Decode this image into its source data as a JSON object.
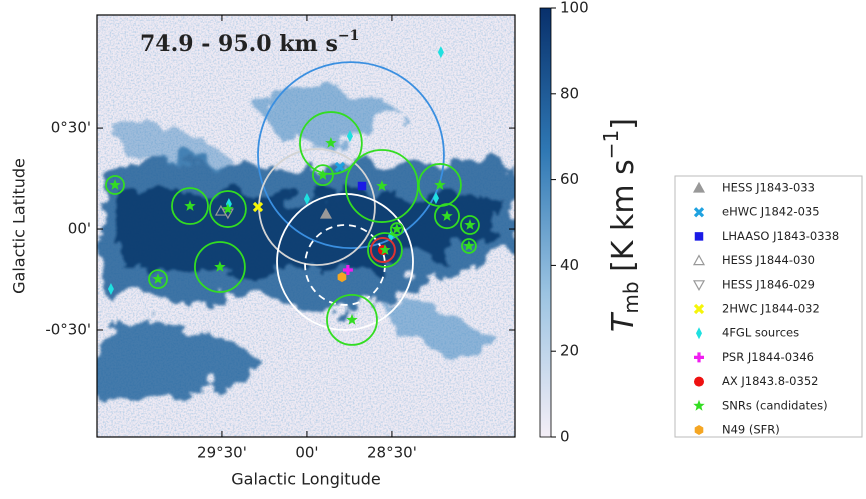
{
  "chart_data": {
    "type": "skymap",
    "title": {
      "text": "74.9 - 95.0 km s",
      "superscript": "−1"
    },
    "xlabel": "Galactic Longitude",
    "ylabel": "Galactic Latitude",
    "xlim": [
      30.235,
      27.776
    ],
    "ylim": [
      -1.03,
      1.06
    ],
    "xticks": [
      {
        "value": 29.5,
        "label": "29°30'"
      },
      {
        "value": 29.0,
        "label": "00'"
      },
      {
        "value": 28.5,
        "label": "28°30'"
      }
    ],
    "yticks": [
      {
        "value": 0.5,
        "label": "0°30'"
      },
      {
        "value": 0,
        "label": "00'"
      },
      {
        "value": -0.5,
        "label": "-0°30'"
      }
    ],
    "colorbar": {
      "symbol": "T",
      "subscript": "mb",
      "unit": " [K km s",
      "exponent": "−1",
      "close": "]",
      "lim": [
        0,
        100
      ],
      "ticks": [
        0,
        20,
        40,
        60,
        80,
        100
      ],
      "colors": [
        "#f4eef6",
        "#9cc4e2",
        "#2f78b4",
        "#08306b"
      ]
    },
    "regions": [
      {
        "x": 28.741,
        "y": 0.366,
        "r": 0.547,
        "color": "#3a8fe0",
        "dashed": false
      },
      {
        "x": 28.941,
        "y": 0.109,
        "r": 0.341,
        "color": "#d4d4d4",
        "dashed": false
      },
      {
        "x": 28.776,
        "y": -0.163,
        "r": 0.4,
        "color": "#ffffff",
        "dashed": false
      },
      {
        "x": 28.776,
        "y": -0.178,
        "r": 0.235,
        "color": "#ffffff",
        "dashed": true
      }
    ],
    "series": [
      {
        "name": "HESS J1843-033",
        "color": "#999999",
        "marker": "triangle-up",
        "filled": true,
        "x": [
          28.888
        ],
        "y": [
          0.074
        ]
      },
      {
        "name": "eHWC J1842-035",
        "color": "#1fa2e0",
        "marker": "x",
        "filled": true,
        "x": [
          28.806
        ],
        "y": [
          0.307
        ]
      },
      {
        "name": "LHAASO J1843-0338",
        "color": "#1a1ae6",
        "marker": "square",
        "filled": true,
        "x": [
          28.676
        ],
        "y": [
          0.213
        ]
      },
      {
        "name": "HESS J1844-030",
        "color": "#999999",
        "marker": "triangle-up",
        "filled": false,
        "x": [
          29.506
        ],
        "y": [
          0.089
        ]
      },
      {
        "name": "HESS J1846-029",
        "color": "#999999",
        "marker": "triangle-down",
        "filled": false,
        "x": [
          29.465
        ],
        "y": [
          0.079
        ]
      },
      {
        "name": "2HWC J1844-032",
        "color": "#f5f50a",
        "marker": "x",
        "filled": true,
        "x": [
          29.288
        ],
        "y": [
          0.109
        ]
      },
      {
        "name": "4FGL sources",
        "color": "#1ee0e0",
        "marker": "diamond",
        "filled": true,
        "x": [
          28.212,
          28.747,
          29.0,
          29.459,
          28.241,
          30.153,
          28.506
        ],
        "y": [
          0.876,
          0.46,
          0.149,
          0.124,
          0.153,
          -0.297,
          -0.035
        ]
      },
      {
        "name": "PSR J1844-0346",
        "color": "#f01ef0",
        "marker": "plus",
        "filled": true,
        "x": [
          28.759
        ],
        "y": [
          -0.203
        ]
      },
      {
        "name": "AX J1843.8-0352",
        "color": "#ee1111",
        "marker": "circle",
        "filled": true,
        "x": [
          28.553
        ],
        "y": [
          -0.104
        ]
      },
      {
        "name": "SNRs (candidates)",
        "color": "#33dd22",
        "marker": "star",
        "filled": true,
        "x": [
          30.129,
          29.876,
          29.688,
          29.465,
          29.512,
          28.859,
          28.906,
          28.559,
          28.541,
          28.471,
          28.218,
          28.176,
          28.041,
          28.047,
          28.735
        ],
        "y": [
          0.218,
          -0.248,
          0.114,
          0.099,
          -0.188,
          0.426,
          0.267,
          0.213,
          -0.104,
          0,
          0.218,
          0.064,
          0.02,
          -0.084,
          -0.45
        ],
        "radii": [
          0.053,
          0.053,
          0.106,
          0.106,
          0.147,
          0.182,
          0.059,
          0.212,
          0.1,
          0.035,
          0.124,
          0.071,
          0.053,
          0.041,
          0.147
        ]
      },
      {
        "name": "N49 (SFR)",
        "color": "#f5a623",
        "marker": "hexagon",
        "filled": true,
        "x": [
          28.794
        ],
        "y": [
          -0.238
        ]
      }
    ]
  }
}
